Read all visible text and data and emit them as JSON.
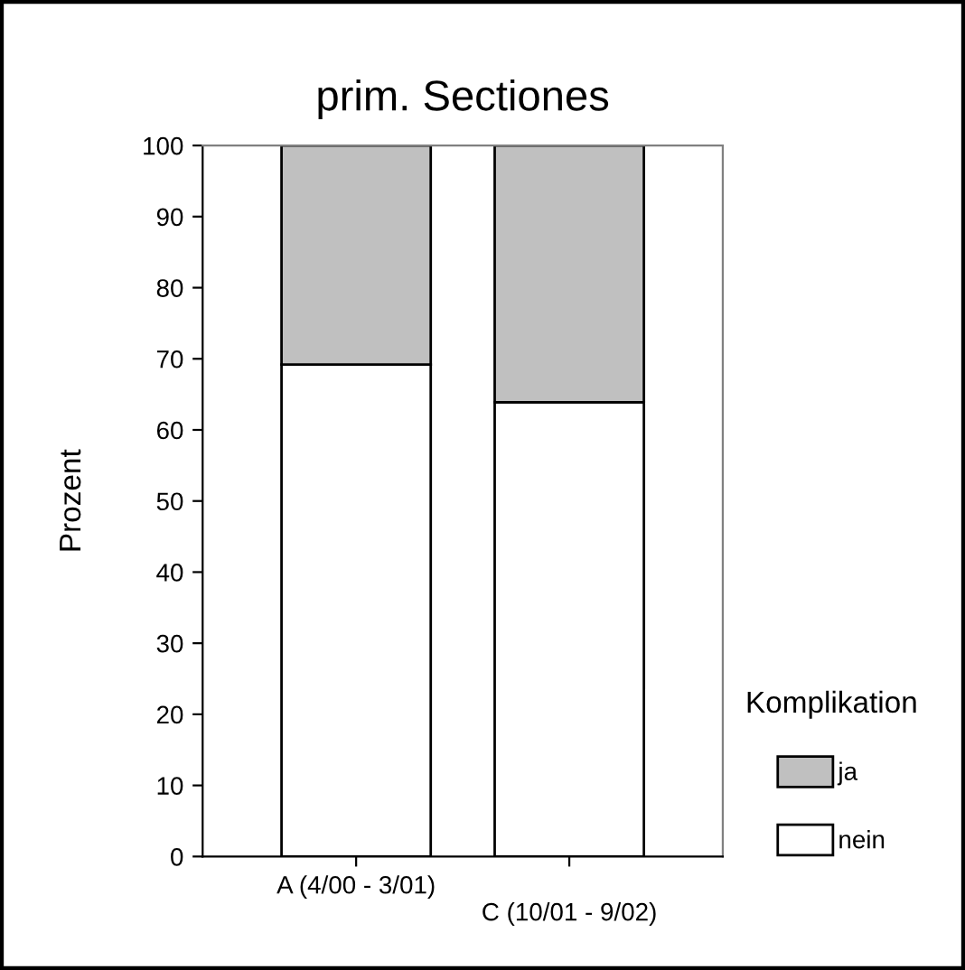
{
  "chart_data": {
    "type": "bar",
    "stacked": true,
    "title": "prim. Sectiones",
    "ylabel": "Prozent",
    "legend_title": "Komplikation",
    "legend": "right",
    "categories": [
      "A (4/00 - 3/01)",
      "C (10/01 - 9/02)"
    ],
    "series": [
      {
        "name": "nein",
        "color": "#ffffff",
        "values": [
          69.2,
          63.9
        ]
      },
      {
        "name": "ja",
        "color": "#c0c0c0",
        "values": [
          30.8,
          36.1
        ]
      }
    ],
    "ylim": [
      0,
      100
    ],
    "yticks": [
      0,
      10,
      20,
      30,
      40,
      50,
      60,
      70,
      80,
      90,
      100
    ],
    "grid": false
  }
}
